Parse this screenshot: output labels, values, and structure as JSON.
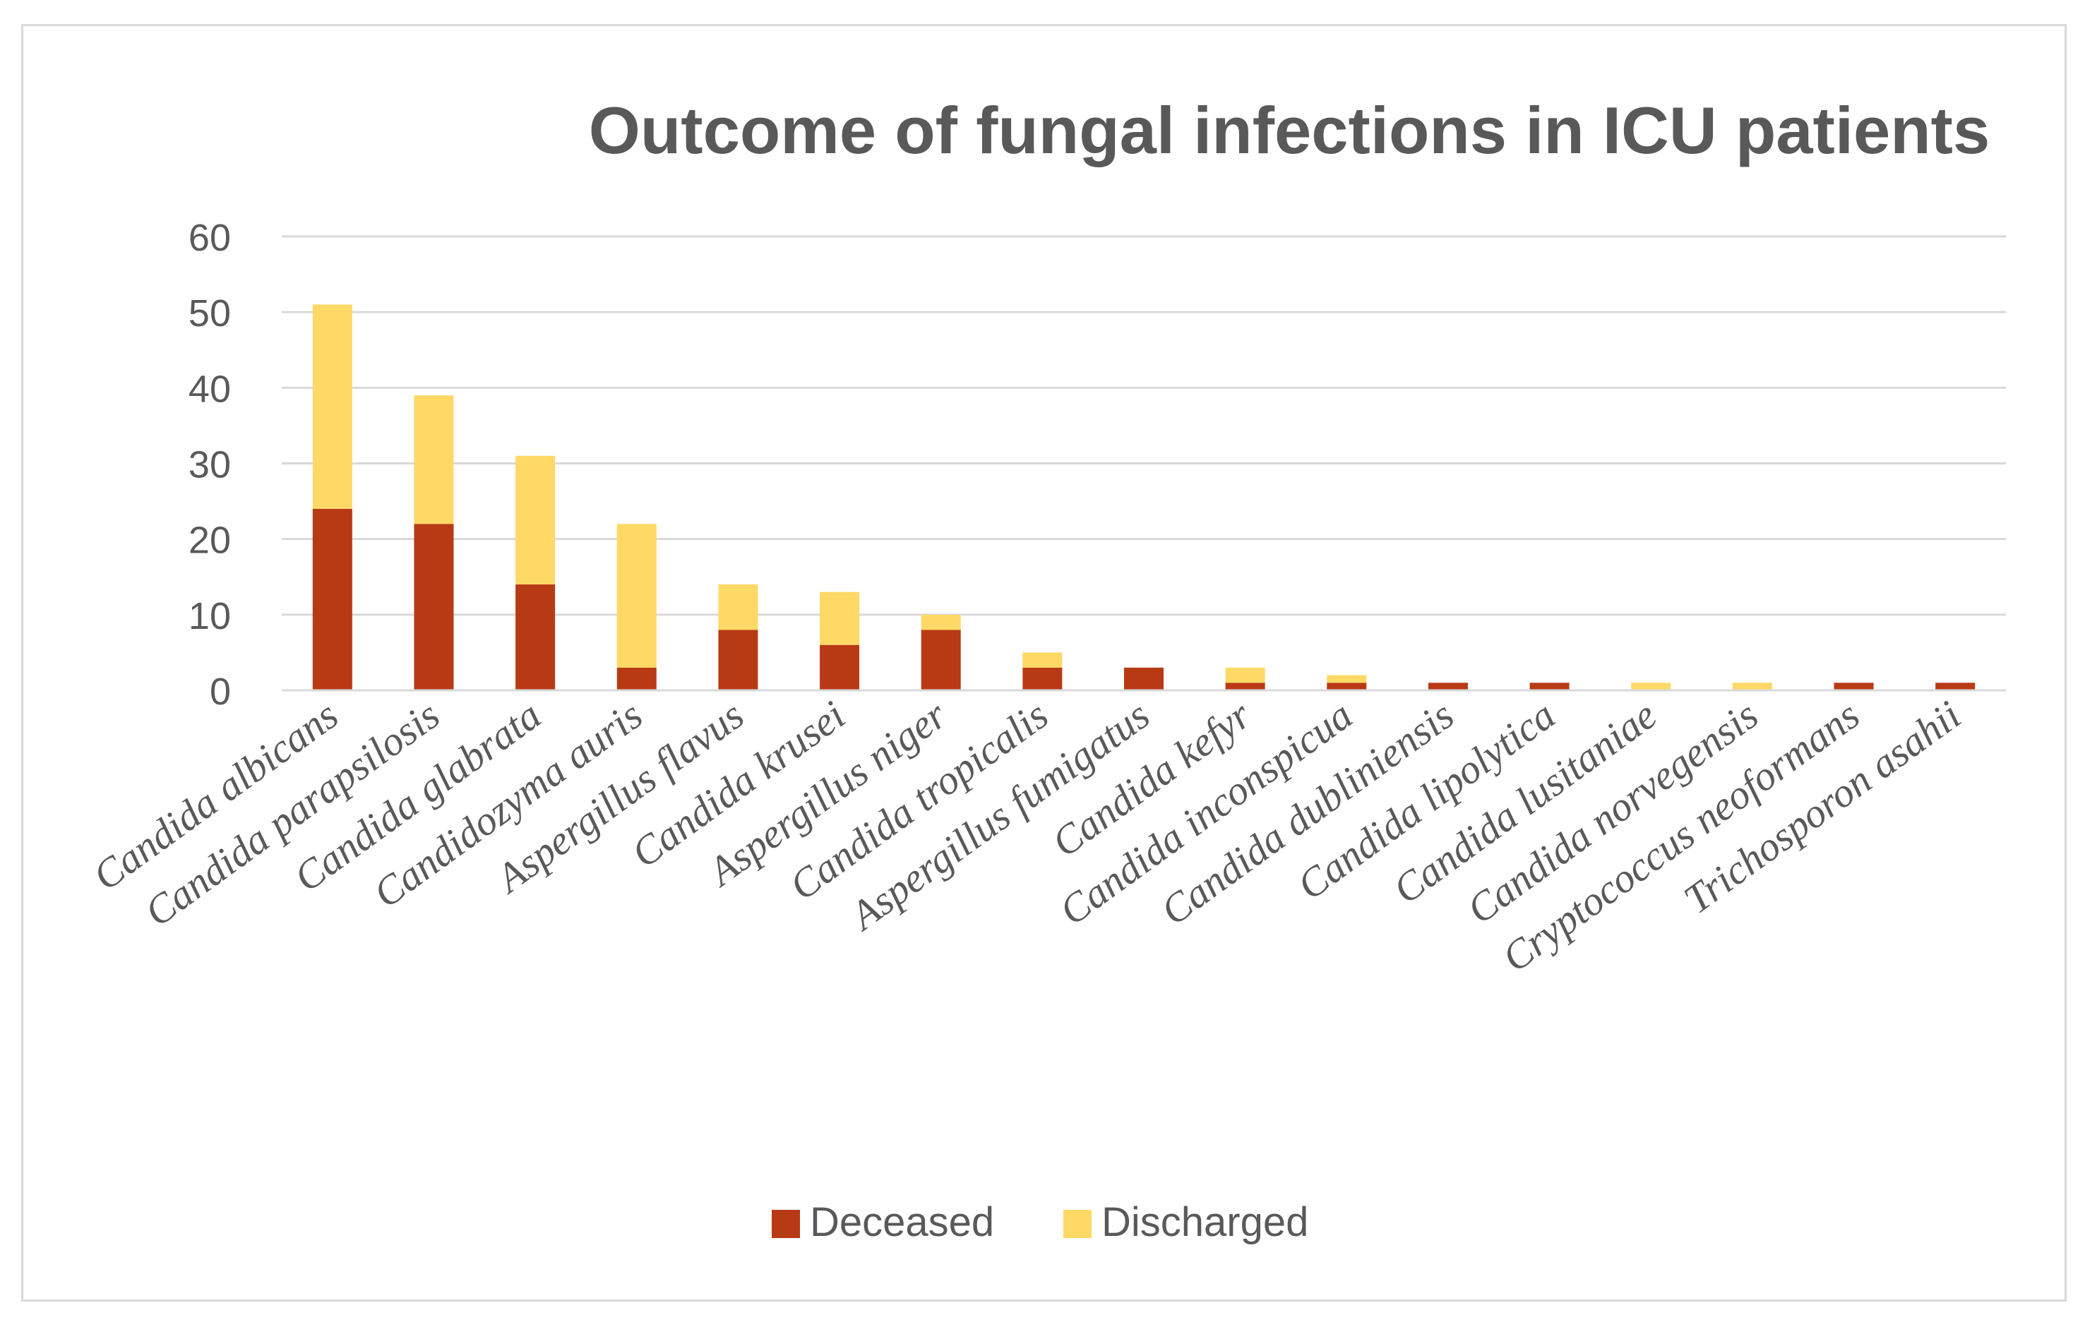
{
  "chart_data": {
    "type": "bar",
    "stacked": true,
    "title": "Outcome of fungal infections in ICU patients",
    "xlabel": "",
    "ylabel": "",
    "ylim": [
      0,
      60
    ],
    "yticks": [
      "0",
      "10",
      "20",
      "30",
      "40",
      "50",
      "60"
    ],
    "grid": true,
    "legend_position": "bottom",
    "categories": [
      "Candida albicans",
      "Candida parapsilosis",
      "Candida glabrata",
      "Candidozyma auris",
      "Aspergillus flavus",
      "Candida krusei",
      "Aspergillus niger",
      "Candida tropicalis",
      "Aspergillus fumigatus",
      "Candida kefyr",
      "Candida inconspicua",
      "Candida dubliniensis",
      "Candida lipolytica",
      "Candida lusitaniae",
      "Candida norvegensis",
      "Cryptococcus neoformans",
      "Trichosporon asahii"
    ],
    "series": [
      {
        "name": "Deceased",
        "color": "#b83a14",
        "values": [
          24,
          22,
          14,
          3,
          8,
          6,
          8,
          3,
          3,
          1,
          1,
          1,
          1,
          0,
          0,
          1,
          1
        ]
      },
      {
        "name": "Discharged",
        "color": "#fed966",
        "values": [
          27,
          17,
          17,
          19,
          6,
          7,
          2,
          2,
          0,
          2,
          1,
          0,
          0,
          1,
          1,
          0,
          0
        ]
      }
    ]
  }
}
